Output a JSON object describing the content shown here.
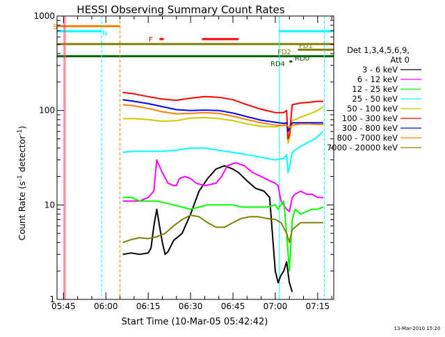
{
  "chart_data": {
    "type": "line",
    "title": "HESSI Observing Summary Count Rates",
    "xlabel": "Start Time (10-Mar-05 05:42:42)",
    "ylabel_main": "Count Rate (s",
    "ylabel_sup": "-1",
    "ylabel_tail": " detector",
    "ylabel_close": ")",
    "y_scale": "log",
    "ylim": [
      1,
      1000
    ],
    "x_unit": "minutes after 05:42:42",
    "xlim": [
      0,
      98
    ],
    "x_ticks": [
      {
        "label": "05:45",
        "x": 2.3
      },
      {
        "label": "06:00",
        "x": 17.3
      },
      {
        "label": "06:15",
        "x": 32.3
      },
      {
        "label": "06:30",
        "x": 47.3
      },
      {
        "label": "06:45",
        "x": 62.3
      },
      {
        "label": "07:00",
        "x": 77.3
      },
      {
        "label": "07:15",
        "x": 92.3
      }
    ],
    "y_ticks": [
      {
        "label": "1",
        "y": 1
      },
      {
        "label": "10",
        "y": 10
      },
      {
        "label": "100",
        "y": 100
      },
      {
        "label": "1000",
        "y": 1000
      }
    ],
    "legend": {
      "title_lines": [
        "Det 1,3,4,5,6,9,",
        "Att 0"
      ],
      "placement": "right",
      "entries": [
        {
          "label": "3 - 6 keV",
          "color": "#000000"
        },
        {
          "label": "6 - 12 keV",
          "color": "#ff00ff"
        },
        {
          "label": "12 - 25 keV",
          "color": "#00ff00"
        },
        {
          "label": "25 - 50 keV",
          "color": "#00ffff"
        },
        {
          "label": "50 - 100 keV",
          "color": "#cccc00"
        },
        {
          "label": "100 - 300 keV",
          "color": "#ff0000"
        },
        {
          "label": "300 - 800 keV",
          "color": "#0000ff"
        },
        {
          "label": "800 - 7000 keV",
          "color": "#ff8000"
        },
        {
          "label": "7000 - 20000 keV",
          "color": "#808000"
        }
      ]
    },
    "series": [
      {
        "name": "3 - 6 keV",
        "color": "#000000",
        "x": [
          23.3,
          26.3,
          29.3,
          32.3,
          33.3,
          34.3,
          35.3,
          36.3,
          37.3,
          38.3,
          39.3,
          41.3,
          44.3,
          47.3,
          50.3,
          53.3,
          56.3,
          59.3,
          62.3,
          64.3,
          67.3,
          70.3,
          73.3,
          75.3,
          77.3,
          78.3,
          79.3,
          80.3,
          81.3,
          82.3,
          83.3
        ],
        "y": [
          3,
          3.1,
          3,
          3.1,
          3.5,
          6,
          9,
          6,
          4,
          3,
          3.2,
          4.2,
          5,
          8,
          14,
          19,
          24,
          26,
          24,
          22,
          18,
          15,
          14,
          12,
          2,
          1.5,
          1.8,
          2,
          2.5,
          1.5,
          1.2
        ]
      },
      {
        "name": "6 - 12 keV",
        "color": "#ff00ff",
        "x": [
          23.3,
          26.3,
          29.3,
          32.3,
          34.3,
          35.3,
          37.3,
          39.3,
          41.3,
          42.3,
          43.3,
          45.3,
          47.3,
          49.3,
          52.3,
          56.3,
          58.3,
          60.3,
          63.3,
          66.3,
          69.3,
          72.3,
          75.3,
          77.3,
          78.3,
          79.3,
          80.3,
          81.3,
          82.3,
          83.3,
          84.3,
          86.3,
          88.3,
          90.3,
          92.3,
          94.3
        ],
        "y": [
          11,
          11,
          11,
          12,
          14,
          30,
          22,
          17,
          16,
          16,
          19,
          20,
          19,
          17,
          16,
          17,
          20,
          26,
          28,
          26,
          22,
          20,
          18,
          17,
          16,
          11,
          10,
          9,
          8.5,
          12,
          13,
          14,
          13,
          13,
          12,
          12
        ]
      },
      {
        "name": "12 - 25 keV",
        "color": "#00ff00",
        "x": [
          23.3,
          26.3,
          29.3,
          32.3,
          35.3,
          38.3,
          41.3,
          44.3,
          47.3,
          50.3,
          53.3,
          56.3,
          59.3,
          62.3,
          65.3,
          68.3,
          71.3,
          74.3,
          77.3,
          78.3,
          79.3,
          80.3,
          81.3,
          82.3,
          83.3,
          84.3,
          86.3,
          88.3,
          90.3,
          92.3,
          94.3
        ],
        "y": [
          12,
          12,
          11,
          11,
          11,
          10.5,
          10,
          9.5,
          9,
          9.5,
          10,
          10,
          10,
          10,
          9.5,
          9.5,
          9.5,
          9.5,
          10,
          9,
          10,
          11,
          5,
          2,
          7,
          9,
          8,
          8.5,
          9,
          9,
          9.5
        ]
      },
      {
        "name": "25 - 50 keV",
        "color": "#00ffff",
        "x": [
          23.3,
          27.3,
          32.3,
          37.3,
          42.3,
          47.3,
          52.3,
          57.3,
          62.3,
          67.3,
          72.3,
          77.3,
          80.3,
          81.3,
          81.8,
          82.3,
          83.3,
          85.3,
          88.3,
          91.3,
          94.3
        ],
        "y": [
          36,
          37,
          37,
          37,
          38,
          40,
          40,
          38,
          36,
          34,
          32,
          30,
          31,
          34,
          22,
          25,
          36,
          40,
          45,
          50,
          60
        ]
      },
      {
        "name": "50 - 100 keV",
        "color": "#cccc00",
        "x": [
          23.3,
          27.3,
          32.3,
          37.3,
          42.3,
          47.3,
          52.3,
          57.3,
          62.3,
          67.3,
          72.3,
          77.3,
          80.3,
          81.3,
          81.8,
          82.3,
          83.3,
          86.3,
          89.3,
          92.3,
          94.3
        ],
        "y": [
          82,
          82,
          80,
          77,
          78,
          83,
          84,
          82,
          78,
          72,
          68,
          67,
          70,
          75,
          45,
          50,
          78,
          85,
          92,
          100,
          110
        ]
      },
      {
        "name": "100 - 300 keV",
        "color": "#ff0000",
        "x": [
          23.3,
          27.3,
          32.3,
          37.3,
          42.3,
          47.3,
          52.3,
          57.3,
          62.3,
          67.3,
          72.3,
          77.3,
          80.3,
          81.3,
          81.8,
          82.3,
          83.3,
          86.3,
          89.3,
          92.3,
          94.3
        ],
        "y": [
          155,
          150,
          140,
          132,
          128,
          135,
          140,
          138,
          130,
          115,
          103,
          95,
          95,
          100,
          50,
          55,
          115,
          120,
          122,
          125,
          125
        ]
      },
      {
        "name": "300 - 800 keV",
        "color": "#0000ff",
        "x": [
          23.3,
          27.3,
          32.3,
          37.3,
          42.3,
          47.3,
          52.3,
          57.3,
          62.3,
          67.3,
          72.3,
          77.3,
          80.3,
          81.3,
          81.8,
          82.3,
          83.3,
          86.3,
          89.3,
          92.3,
          94.3
        ],
        "y": [
          130,
          125,
          118,
          110,
          102,
          100,
          101,
          100,
          94,
          86,
          79,
          75,
          73,
          74,
          60,
          65,
          74,
          74,
          74,
          74,
          74
        ]
      },
      {
        "name": "800 - 7000 keV",
        "color": "#ff8000",
        "x": [
          23.3,
          27.3,
          32.3,
          37.3,
          42.3,
          47.3,
          52.3,
          57.3,
          62.3,
          67.3,
          72.3,
          77.3,
          80.3,
          81.3,
          82.3,
          83.3,
          86.3,
          89.3,
          92.3,
          94.3
        ],
        "y": [
          115,
          112,
          105,
          97,
          92,
          93,
          95,
          93,
          87,
          80,
          74,
          70,
          69,
          70,
          66,
          70,
          72,
          72,
          71,
          71
        ]
      },
      {
        "name": "7000 - 20000 keV",
        "color": "#808000",
        "x": [
          23.3,
          26.3,
          29.3,
          32.3,
          35.3,
          38.3,
          41.3,
          44.3,
          47.3,
          50.3,
          53.3,
          56.3,
          59.3,
          62.3,
          65.3,
          68.3,
          71.3,
          74.3,
          77.3,
          79.3,
          81.3,
          82.3,
          83.3,
          86.3,
          89.3,
          92.3,
          94.3
        ],
        "y": [
          4,
          4.3,
          4.5,
          4.4,
          4.6,
          5,
          6,
          7,
          7.8,
          7.5,
          6.5,
          5.8,
          5.8,
          6.5,
          7.2,
          7.5,
          7.5,
          7.2,
          7,
          6.5,
          5,
          4,
          5.5,
          6.5,
          6.5,
          6.5,
          6.5
        ]
      }
    ],
    "annotations": [
      {
        "label": "S",
        "color": "#ff8000"
      },
      {
        "label": "N",
        "color": "#00ffff"
      },
      {
        "label": "F",
        "color": "#ff0000"
      },
      {
        "label": "FD1",
        "color": "#808000"
      },
      {
        "label": "FD2",
        "color": "#808000"
      },
      {
        "label": "RD0",
        "color": "#006400"
      },
      {
        "label": "RD4",
        "color": "#006400"
      }
    ],
    "flag_bars": [
      {
        "label": "S",
        "color": "#ff8000",
        "x_start": 0,
        "x_end": 22.3,
        "y": 780
      },
      {
        "label": "N",
        "color": "#00ffff",
        "x_start": 0,
        "x_end": 15.8,
        "y": 690
      },
      {
        "label": "N",
        "color": "#00ffff",
        "x_start": 78.7,
        "x_end": 98,
        "y": 690
      },
      {
        "label": "F",
        "color": "#ff0000",
        "x_start": 36.3,
        "x_end": 37.8,
        "y": 570
      },
      {
        "label": "F",
        "color": "#ff0000",
        "x_start": 51.3,
        "x_end": 64.3,
        "y": 570
      },
      {
        "label": "FD1",
        "color": "#808000",
        "x_start": 0,
        "x_end": 98,
        "y": 505
      },
      {
        "label": "FD2",
        "color": "#808000",
        "x_start": 85.3,
        "x_end": 98,
        "y": 440
      },
      {
        "label": "RD0",
        "color": "#006400",
        "x_start": 0,
        "x_end": 98,
        "y": 375
      },
      {
        "label": "RD4",
        "color": "#006400",
        "x_start": 82.3,
        "x_end": 83.3,
        "y": 330
      }
    ],
    "vertical_markers": [
      {
        "x": 2.5,
        "color": "#ff00ff",
        "style": "solid"
      },
      {
        "x": 3.0,
        "color": "#ff8000",
        "style": "solid"
      },
      {
        "x": 15.8,
        "color": "#00ffff",
        "style": "dashed"
      },
      {
        "x": 22.3,
        "color": "#ff8000",
        "style": "dashed"
      },
      {
        "x": 78.7,
        "color": "#00ffff",
        "style": "solid"
      },
      {
        "x": 94.7,
        "color": "#00ffff",
        "style": "dashed"
      }
    ],
    "footer_date": "13-Mar-2010 15:20"
  }
}
